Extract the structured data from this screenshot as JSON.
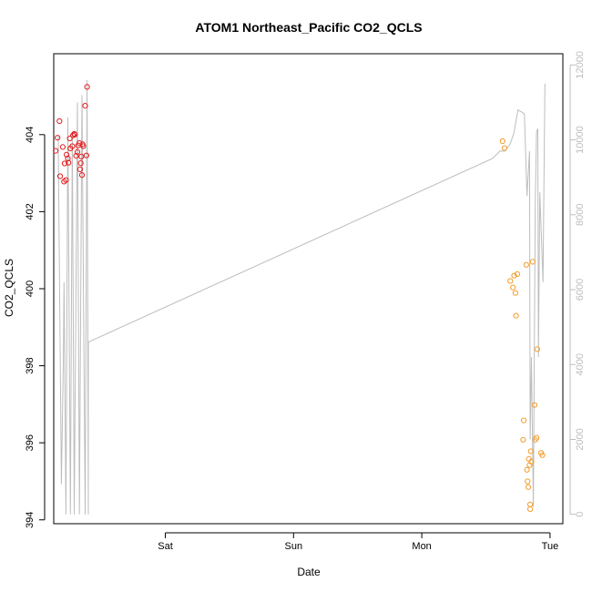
{
  "chart_data": {
    "type": "scatter",
    "title": "ATOM1 Northeast_Pacific CO2_QCLS",
    "xlabel": "Date",
    "ylabel": "CO2_QCLS",
    "y_ticks": [
      "394",
      "396",
      "398",
      "400",
      "402",
      "404"
    ],
    "y2_ticks": [
      "0",
      "2000",
      "4000",
      "6000",
      "8000",
      "10000",
      "12000"
    ],
    "x_ticks": [
      {
        "label": "Sat",
        "day": 1.0
      },
      {
        "label": "Sun",
        "day": 2.0
      },
      {
        "label": "Mon",
        "day": 3.0
      },
      {
        "label": "Tue",
        "day": 4.0
      }
    ],
    "xlim_days": [
      0.13,
      4.1
    ],
    "ylim": [
      393.9,
      406.1
    ],
    "y2lim": [
      -250,
      12300
    ],
    "grid": false,
    "colors": {
      "series1": "#e41a1c",
      "series2": "#f39c2a",
      "altitude": "#bdbdbd",
      "axis": "#000000"
    },
    "series": [
      {
        "color": "#e41a1c",
        "points": [
          [
            0.145,
            403.58
          ],
          [
            0.16,
            403.92
          ],
          [
            0.175,
            404.35
          ],
          [
            0.18,
            402.92
          ],
          [
            0.2,
            403.68
          ],
          [
            0.21,
            402.78
          ],
          [
            0.215,
            403.25
          ],
          [
            0.225,
            402.82
          ],
          [
            0.23,
            403.48
          ],
          [
            0.24,
            403.38
          ],
          [
            0.245,
            403.27
          ],
          [
            0.255,
            403.9
          ],
          [
            0.26,
            403.64
          ],
          [
            0.275,
            403.7
          ],
          [
            0.28,
            403.98
          ],
          [
            0.29,
            404.02
          ],
          [
            0.295,
            404.0
          ],
          [
            0.305,
            403.45
          ],
          [
            0.315,
            403.55
          ],
          [
            0.32,
            403.72
          ],
          [
            0.33,
            403.78
          ],
          [
            0.335,
            403.1
          ],
          [
            0.34,
            403.26
          ],
          [
            0.345,
            403.43
          ],
          [
            0.35,
            402.95
          ],
          [
            0.355,
            403.75
          ],
          [
            0.36,
            403.7
          ],
          [
            0.375,
            404.75
          ],
          [
            0.385,
            403.46
          ],
          [
            0.39,
            405.24
          ]
        ]
      },
      {
        "color": "#f39c2a",
        "points": [
          [
            3.63,
            403.83
          ],
          [
            3.645,
            403.65
          ],
          [
            3.69,
            400.2
          ],
          [
            3.71,
            400.03
          ],
          [
            3.72,
            400.34
          ],
          [
            3.73,
            399.89
          ],
          [
            3.735,
            399.3
          ],
          [
            3.745,
            400.38
          ],
          [
            3.79,
            396.08
          ],
          [
            3.795,
            396.58
          ],
          [
            3.815,
            400.62
          ],
          [
            3.82,
            395.3
          ],
          [
            3.825,
            395.0
          ],
          [
            3.83,
            394.85
          ],
          [
            3.835,
            395.58
          ],
          [
            3.84,
            395.42
          ],
          [
            3.845,
            394.4
          ],
          [
            3.845,
            394.28
          ],
          [
            3.85,
            395.78
          ],
          [
            3.855,
            395.51
          ],
          [
            3.865,
            400.7
          ],
          [
            3.88,
            396.98
          ],
          [
            3.885,
            396.08
          ],
          [
            3.895,
            396.13
          ],
          [
            3.9,
            398.43
          ],
          [
            3.93,
            395.74
          ],
          [
            3.94,
            395.68
          ]
        ]
      }
    ],
    "altitude": {
      "color": "#bdbdbd",
      "points": [
        [
          0.165,
          10100
        ],
        [
          0.19,
          800
        ],
        [
          0.205,
          4200
        ],
        [
          0.21,
          6200
        ],
        [
          0.225,
          0
        ],
        [
          0.24,
          10600
        ],
        [
          0.26,
          0
        ],
        [
          0.275,
          10200
        ],
        [
          0.29,
          0
        ],
        [
          0.315,
          11000
        ],
        [
          0.33,
          0
        ],
        [
          0.35,
          11200
        ],
        [
          0.375,
          0
        ],
        [
          0.39,
          11600
        ],
        [
          0.4,
          0
        ],
        [
          0.4,
          4600
        ],
        [
          3.55,
          9500
        ],
        [
          3.58,
          9600
        ],
        [
          3.61,
          9700
        ],
        [
          3.65,
          9700
        ],
        [
          3.69,
          9900
        ],
        [
          3.72,
          10200
        ],
        [
          3.75,
          10800
        ],
        [
          3.8,
          10700
        ],
        [
          3.82,
          8500
        ],
        [
          3.84,
          9700
        ],
        [
          3.845,
          2000
        ],
        [
          3.855,
          4200
        ],
        [
          3.87,
          200
        ],
        [
          3.885,
          8300
        ],
        [
          3.895,
          10200
        ],
        [
          3.905,
          10300
        ],
        [
          3.91,
          4200
        ],
        [
          3.92,
          8600
        ],
        [
          3.945,
          6200
        ],
        [
          3.96,
          11500
        ]
      ]
    }
  }
}
